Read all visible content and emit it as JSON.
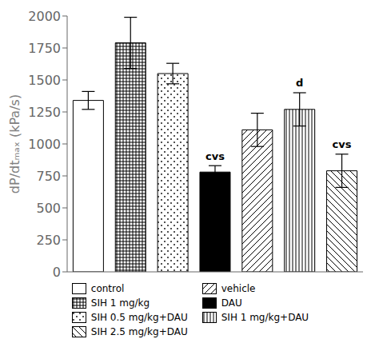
{
  "chart_data": {
    "type": "bar",
    "ylabel": "dP/dtₘₐₓ (kPa/s)",
    "categories": [
      null,
      null,
      null,
      null,
      null,
      null,
      null
    ],
    "series": [
      {
        "name": "control",
        "color": "white",
        "values": [
          1340,
          null,
          null,
          null,
          null,
          null,
          null
        ],
        "errors": [
          70,
          null,
          null,
          null,
          null,
          null,
          null
        ]
      },
      {
        "name": "vehicle",
        "color": "white",
        "values": [
          null,
          null,
          null,
          null,
          1110,
          null,
          null
        ],
        "errors": [
          null,
          null,
          null,
          null,
          130,
          null,
          null
        ]
      },
      {
        "name": "SIH 1 mg/kg",
        "color": "white",
        "values": [
          null,
          1790,
          null,
          null,
          null,
          null,
          null
        ],
        "errors": [
          null,
          200,
          null,
          null,
          null,
          null,
          null
        ]
      },
      {
        "name": "DAU",
        "color": "black",
        "values": [
          null,
          null,
          null,
          780,
          null,
          null,
          null
        ],
        "errors": [
          null,
          null,
          null,
          50,
          null,
          null,
          null
        ]
      },
      {
        "name": "SIH 0.5 mg/kg+DAU",
        "color": "white",
        "values": [
          null,
          null,
          1550,
          null,
          null,
          null,
          null
        ],
        "errors": [
          null,
          null,
          80,
          null,
          null,
          null,
          null
        ]
      },
      {
        "name": "SIH 1 mg/kg+DAU",
        "color": "white",
        "values": [
          null,
          null,
          null,
          null,
          null,
          1270,
          null
        ],
        "errors": [
          null,
          null,
          null,
          null,
          null,
          130,
          null
        ]
      },
      {
        "name": "SIH 2.5 mg/kg+DAU",
        "color": "white",
        "values": [
          null,
          null,
          null,
          null,
          null,
          null,
          790
        ],
        "errors": [
          null,
          null,
          null,
          null,
          null,
          null,
          130
        ]
      }
    ],
    "annotations": [
      {
        "text": "cvs",
        "x": 3,
        "y": 855
      },
      {
        "text": "d",
        "x": 5,
        "y": 1430
      },
      {
        "text": "cvs",
        "x": 6,
        "y": 950
      }
    ],
    "ylim": [
      0,
      2000
    ],
    "yticks": [
      0,
      250,
      500,
      750,
      1000,
      1250,
      1500,
      1750,
      2000
    ],
    "grid": false,
    "legend": "bottom",
    "tick_labels": "y"
  }
}
